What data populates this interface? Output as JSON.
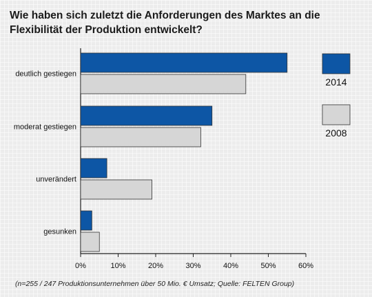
{
  "chart_data": {
    "type": "bar",
    "orientation": "horizontal",
    "title": "Wie haben sich zuletzt die Anforderungen des Marktes an die Flexibilität der Produktion entwickelt?",
    "categories": [
      "deutlich gestiegen",
      "moderat gestiegen",
      "unverändert",
      "gesunken"
    ],
    "series": [
      {
        "name": "2014",
        "color": "#0d56a5",
        "values": [
          55,
          35,
          7,
          3
        ]
      },
      {
        "name": "2008",
        "color": "#d6d6d6",
        "values": [
          44,
          32,
          19,
          5
        ]
      }
    ],
    "xlim": [
      0,
      60
    ],
    "xticks": [
      "0%",
      "10%",
      "20%",
      "30%",
      "40%",
      "50%",
      "60%"
    ],
    "legend_position": "right",
    "grid": false
  },
  "footnote": "(n=255 / 247 Produktionsunternehmen über 50 Mio. € Umsatz; Quelle: FELTEN Group)"
}
